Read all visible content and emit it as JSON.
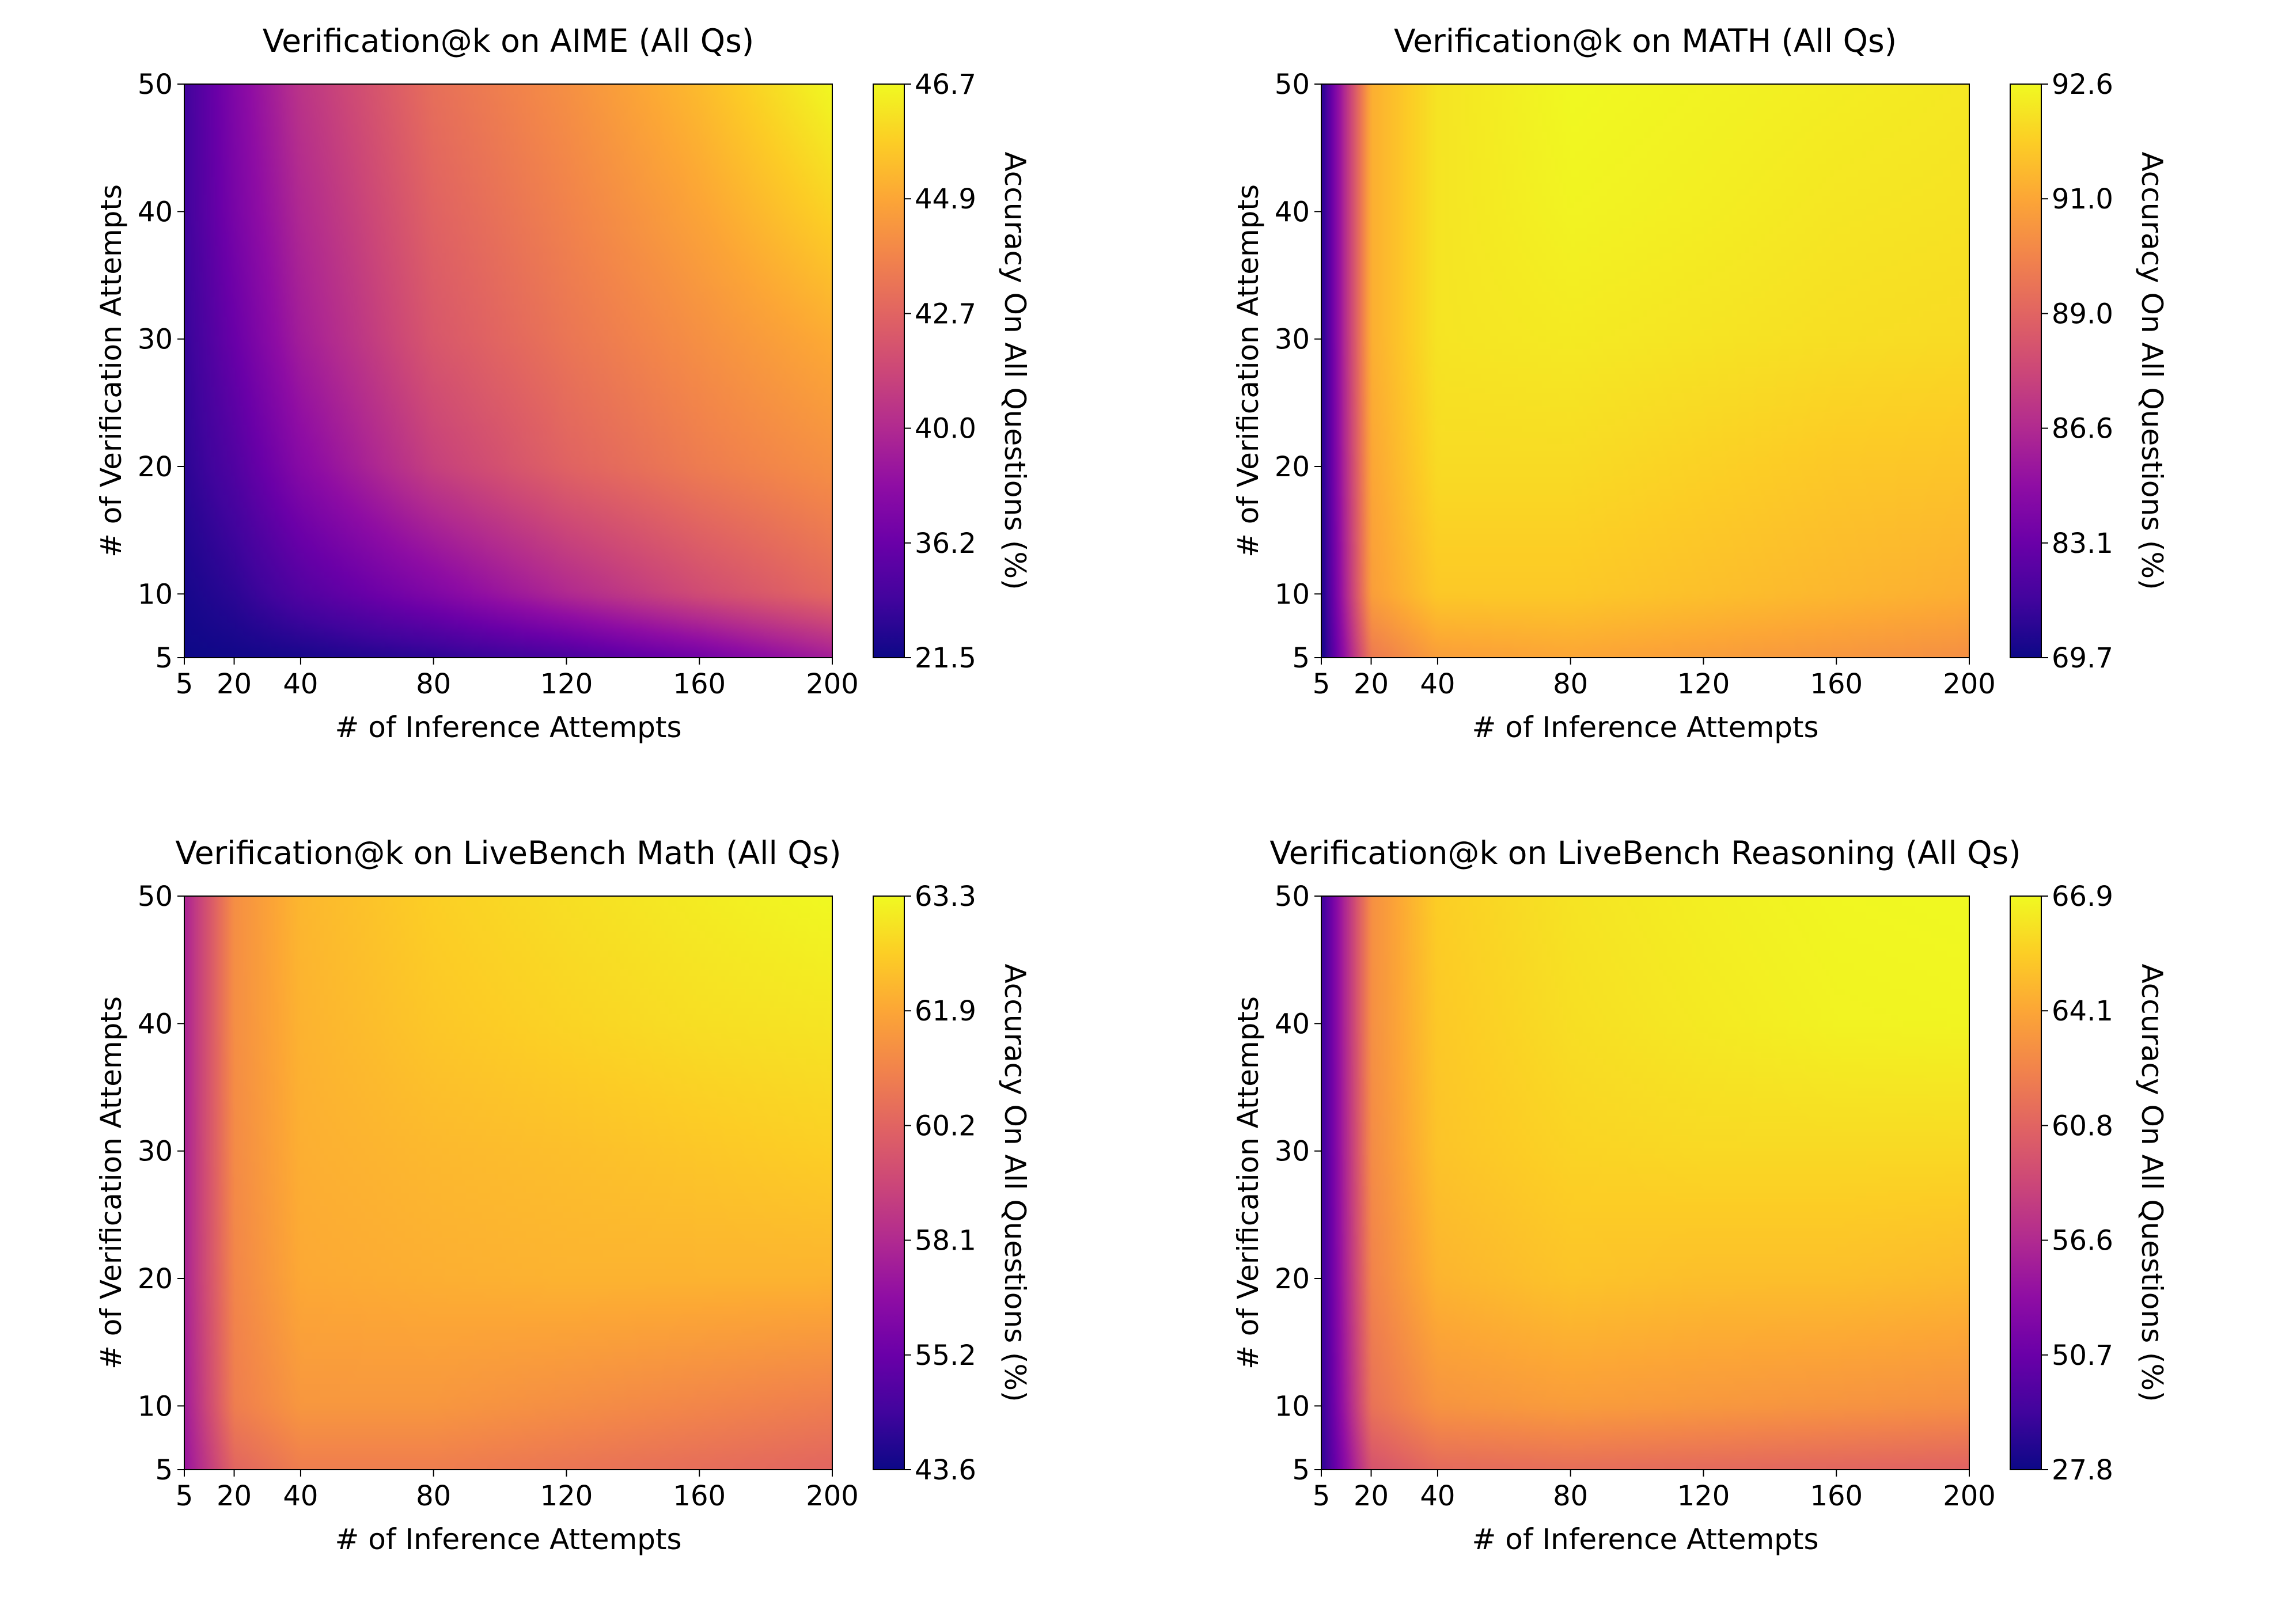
{
  "chart_data": [
    {
      "type": "heatmap",
      "title": "Verification@k on AIME (All Qs)",
      "xlabel": "# of Inference Attempts",
      "ylabel": "# of Verification Attempts",
      "colorbar_label": "Accuracy On All Questions (%)",
      "colormap": "plasma",
      "xlim": [
        5,
        200
      ],
      "ylim": [
        5,
        50
      ],
      "xticks": [
        5,
        20,
        40,
        80,
        120,
        160,
        200
      ],
      "yticks": [
        5,
        10,
        20,
        30,
        40,
        50
      ],
      "color_range": [
        21.5,
        46.7
      ],
      "colorbar_ticks": [
        "21.5",
        "36.2",
        "40.0",
        "42.7",
        "44.9",
        "46.7"
      ],
      "x": [
        5,
        20,
        40,
        80,
        120,
        160,
        200
      ],
      "y": [
        5,
        10,
        20,
        30,
        40,
        50
      ],
      "z": [
        [
          21.5,
          21.7,
          22.0,
          23.0,
          24.5,
          27.0,
          30.5
        ],
        [
          22.0,
          23.0,
          25.0,
          28.0,
          31.5,
          34.5,
          37.0
        ],
        [
          23.0,
          25.0,
          28.5,
          33.5,
          36.5,
          38.5,
          40.0
        ],
        [
          23.5,
          26.5,
          30.5,
          35.5,
          38.0,
          40.0,
          42.0
        ],
        [
          24.0,
          27.5,
          31.5,
          36.5,
          39.0,
          41.5,
          44.5
        ],
        [
          24.0,
          28.0,
          32.5,
          37.5,
          40.0,
          43.0,
          46.7
        ]
      ]
    },
    {
      "type": "heatmap",
      "title": "Verification@k on MATH (All Qs)",
      "xlabel": "# of Inference Attempts",
      "ylabel": "# of Verification Attempts",
      "colorbar_label": "Accuracy On All Questions (%)",
      "colormap": "plasma",
      "xlim": [
        5,
        200
      ],
      "ylim": [
        5,
        50
      ],
      "xticks": [
        5,
        20,
        40,
        80,
        120,
        160,
        200
      ],
      "yticks": [
        5,
        10,
        20,
        30,
        40,
        50
      ],
      "color_range": [
        69.7,
        92.6
      ],
      "colorbar_ticks": [
        "69.7",
        "83.1",
        "86.6",
        "89.0",
        "91.0",
        "92.6"
      ],
      "x": [
        5,
        20,
        40,
        80,
        120,
        160,
        200
      ],
      "y": [
        5,
        10,
        20,
        30,
        40,
        50
      ],
      "z": [
        [
          69.7,
          85.0,
          87.5,
          88.0,
          87.5,
          87.0,
          86.5
        ],
        [
          70.0,
          87.5,
          90.0,
          90.0,
          89.5,
          89.0,
          88.5
        ],
        [
          70.5,
          88.0,
          91.0,
          91.0,
          90.5,
          90.0,
          89.8
        ],
        [
          70.5,
          88.5,
          91.5,
          91.8,
          91.5,
          91.2,
          91.0
        ],
        [
          70.5,
          88.5,
          91.5,
          92.3,
          92.0,
          91.6,
          91.4
        ],
        [
          70.5,
          88.5,
          91.5,
          92.6,
          92.3,
          92.0,
          91.7
        ]
      ]
    },
    {
      "type": "heatmap",
      "title": "Verification@k on LiveBench Math (All Qs)",
      "xlabel": "# of Inference Attempts",
      "ylabel": "# of Verification Attempts",
      "colorbar_label": "Accuracy On All Questions (%)",
      "colormap": "plasma",
      "xlim": [
        5,
        200
      ],
      "ylim": [
        5,
        50
      ],
      "xticks": [
        5,
        20,
        40,
        80,
        120,
        160,
        200
      ],
      "yticks": [
        5,
        10,
        20,
        30,
        40,
        50
      ],
      "color_range": [
        43.6,
        63.3
      ],
      "colorbar_ticks": [
        "43.6",
        "55.2",
        "58.1",
        "60.2",
        "61.9",
        "63.3"
      ],
      "x": [
        5,
        20,
        40,
        80,
        120,
        160,
        200
      ],
      "y": [
        5,
        10,
        20,
        30,
        40,
        50
      ],
      "z": [
        [
          50.0,
          55.5,
          57.0,
          57.0,
          56.5,
          56.0,
          55.5
        ],
        [
          50.5,
          57.0,
          58.5,
          58.5,
          58.0,
          57.5,
          57.0
        ],
        [
          51.0,
          57.5,
          59.5,
          59.8,
          60.0,
          60.0,
          60.0
        ],
        [
          51.0,
          57.8,
          59.8,
          60.3,
          60.6,
          61.0,
          61.4
        ],
        [
          51.0,
          58.0,
          60.0,
          61.0,
          61.6,
          62.1,
          62.4
        ],
        [
          51.0,
          58.0,
          60.2,
          61.4,
          62.1,
          62.7,
          63.3
        ]
      ]
    },
    {
      "type": "heatmap",
      "title": "Verification@k on LiveBench Reasoning (All Qs)",
      "xlabel": "# of Inference Attempts",
      "ylabel": "# of Verification Attempts",
      "colorbar_label": "Accuracy On All Questions (%)",
      "colormap": "plasma",
      "xlim": [
        5,
        200
      ],
      "ylim": [
        5,
        50
      ],
      "xticks": [
        5,
        20,
        40,
        80,
        120,
        160,
        200
      ],
      "yticks": [
        5,
        10,
        20,
        30,
        40,
        50
      ],
      "color_range": [
        27.8,
        66.9
      ],
      "colorbar_ticks": [
        "27.8",
        "50.7",
        "56.6",
        "60.8",
        "64.1",
        "66.9"
      ],
      "x": [
        5,
        20,
        40,
        80,
        120,
        160,
        200
      ],
      "y": [
        5,
        10,
        20,
        30,
        40,
        50
      ],
      "z": [
        [
          30.0,
          49.0,
          52.0,
          52.5,
          52.0,
          51.5,
          51.0
        ],
        [
          30.5,
          53.0,
          57.0,
          58.0,
          57.5,
          57.0,
          56.5
        ],
        [
          31.0,
          55.0,
          60.5,
          62.0,
          61.5,
          61.5,
          61.0
        ],
        [
          31.0,
          56.0,
          62.0,
          63.5,
          64.0,
          64.0,
          64.0
        ],
        [
          31.0,
          56.5,
          62.5,
          64.5,
          65.5,
          66.3,
          66.5
        ],
        [
          31.0,
          56.5,
          63.0,
          65.0,
          66.0,
          66.7,
          66.9
        ]
      ]
    }
  ]
}
